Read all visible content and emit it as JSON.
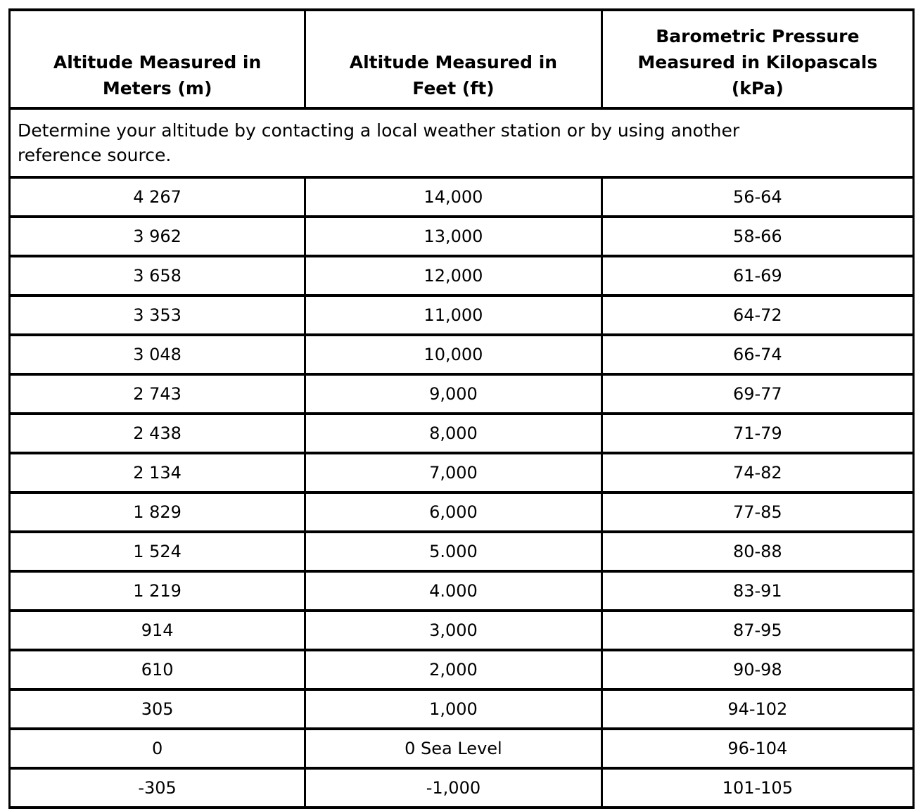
{
  "page": {
    "background_color": "#ffffff",
    "text_color": "#000000",
    "border_color": "#000000"
  },
  "table": {
    "columns": [
      {
        "label": "Altitude Measured in Meters (m)",
        "lines": [
          "Altitude Measured in",
          "Meters (m)"
        ]
      },
      {
        "label": "Altitude Measured in Feet (ft)",
        "lines": [
          "Altitude Measured in",
          "Feet (ft)"
        ]
      },
      {
        "label": "Barometric Pressure Measured in Kilopascals (kPa)",
        "lines": [
          "Barometric Pressure",
          "Measured in Kilopascals",
          "(kPa)"
        ]
      }
    ],
    "note": "Determine your altitude by contacting a local weather station or by using another reference source.",
    "note_lines": [
      "Determine your altitude by contacting a local weather station or by using another",
      "reference source."
    ],
    "rows": [
      {
        "meters": "4 267",
        "feet": "14,000",
        "pressure_kpa": "56-64"
      },
      {
        "meters": "3 962",
        "feet": "13,000",
        "pressure_kpa": "58-66"
      },
      {
        "meters": "3 658",
        "feet": "12,000",
        "pressure_kpa": "61-69"
      },
      {
        "meters": "3 353",
        "feet": "11,000",
        "pressure_kpa": "64-72"
      },
      {
        "meters": "3 048",
        "feet": "10,000",
        "pressure_kpa": "66-74"
      },
      {
        "meters": "2 743",
        "feet": "9,000",
        "pressure_kpa": "69-77"
      },
      {
        "meters": "2 438",
        "feet": "8,000",
        "pressure_kpa": "71-79"
      },
      {
        "meters": "2 134",
        "feet": "7,000",
        "pressure_kpa": "74-82"
      },
      {
        "meters": "1 829",
        "feet": "6,000",
        "pressure_kpa": "77-85"
      },
      {
        "meters": "1 524",
        "feet": "5.000",
        "pressure_kpa": "80-88"
      },
      {
        "meters": "1 219",
        "feet": "4.000",
        "pressure_kpa": "83-91"
      },
      {
        "meters": "914",
        "feet": "3,000",
        "pressure_kpa": "87-95"
      },
      {
        "meters": "610",
        "feet": "2,000",
        "pressure_kpa": "90-98"
      },
      {
        "meters": "305",
        "feet": "1,000",
        "pressure_kpa": "94-102"
      },
      {
        "meters": "0",
        "feet": "0 Sea Level",
        "pressure_kpa": "96-104"
      },
      {
        "meters": "-305",
        "feet": "-1,000",
        "pressure_kpa": "101-105"
      }
    ]
  }
}
